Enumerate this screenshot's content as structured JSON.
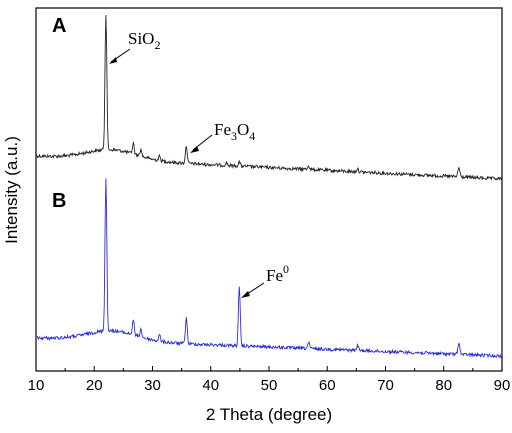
{
  "chart_data": {
    "type": "line",
    "xlabel": "2 Theta (degree)",
    "ylabel": "Intensity (a.u.)",
    "xlim": [
      10,
      90
    ],
    "xticks": [
      10,
      20,
      30,
      40,
      50,
      60,
      70,
      80,
      90
    ],
    "y_ticks_shown": false,
    "grid": false,
    "panels": [
      {
        "label": "A",
        "color": "#222222",
        "peaks": [
          {
            "x": 22.0,
            "height": 1.0
          },
          {
            "x": 26.7,
            "height": 0.08
          },
          {
            "x": 28.0,
            "height": 0.05
          },
          {
            "x": 31.2,
            "height": 0.03
          },
          {
            "x": 35.8,
            "height": 0.13
          },
          {
            "x": 42.7,
            "height": 0.02
          },
          {
            "x": 44.9,
            "height": 0.03
          },
          {
            "x": 56.8,
            "height": 0.03
          },
          {
            "x": 65.2,
            "height": 0.025
          },
          {
            "x": 82.6,
            "height": 0.07
          }
        ],
        "annotations": [
          {
            "text": "SiO",
            "sub": "2",
            "sup": "",
            "x": 22.0
          },
          {
            "text": "Fe",
            "sub": "3",
            "mid": "O",
            "sub2": "4",
            "sup": "",
            "x": 35.8
          }
        ]
      },
      {
        "label": "B",
        "color": "#2d2dd8",
        "peaks": [
          {
            "x": 22.0,
            "height": 1.0
          },
          {
            "x": 26.7,
            "height": 0.1
          },
          {
            "x": 28.0,
            "height": 0.05
          },
          {
            "x": 31.2,
            "height": 0.04
          },
          {
            "x": 35.8,
            "height": 0.17
          },
          {
            "x": 44.9,
            "height": 0.38
          },
          {
            "x": 56.8,
            "height": 0.04
          },
          {
            "x": 65.2,
            "height": 0.035
          },
          {
            "x": 82.6,
            "height": 0.08
          }
        ],
        "annotations": [
          {
            "text": "Fe",
            "sup": "0",
            "x": 44.9
          }
        ]
      }
    ]
  }
}
